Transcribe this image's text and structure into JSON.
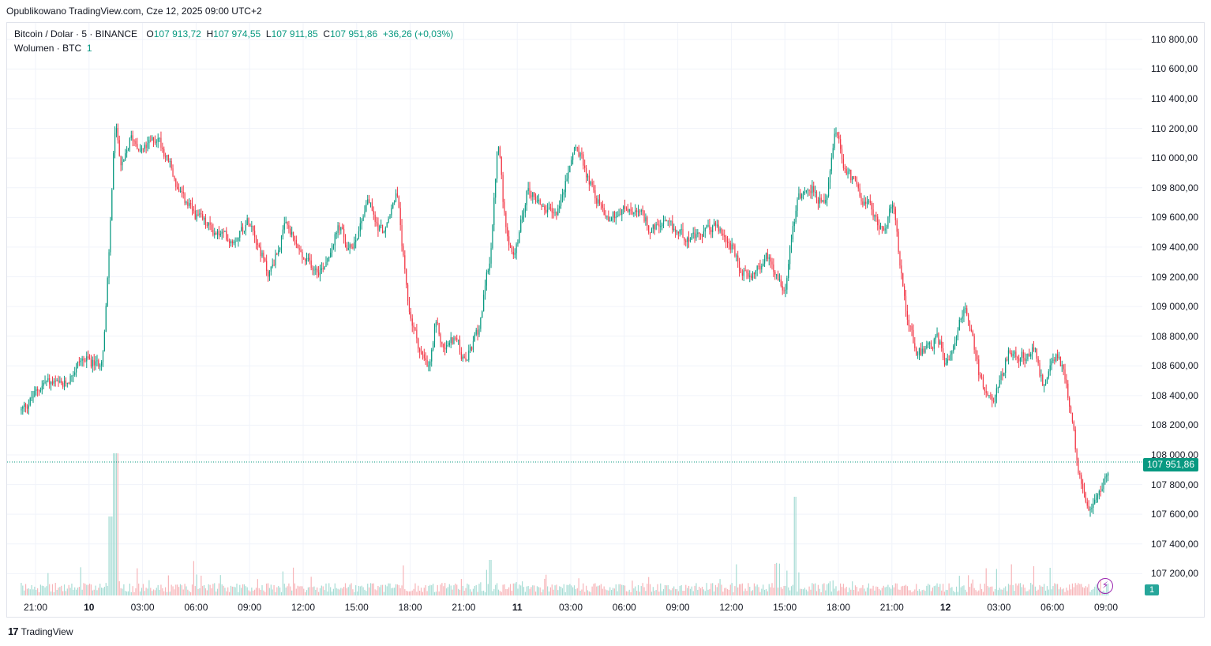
{
  "header": {
    "published": "Opublikowano TradingView.com, Cze 12, 2025 09:00 UTC+2"
  },
  "legend": {
    "symbol": "Bitcoin / Dolar · 5 · BINANCE",
    "o_label": "O",
    "o_value": "107 913,72",
    "h_label": "H",
    "h_value": "107 974,55",
    "l_label": "L",
    "l_value": "107 911,85",
    "c_label": "C",
    "c_value": "107 951,86",
    "change": "+36,26 (+0,03%)",
    "volume_label": "Wolumen · BTC",
    "volume_value": "1"
  },
  "price_badge": "107 951,86",
  "volume_badge": "1",
  "footer": {
    "brand": "TradingView",
    "logo": "17"
  },
  "colors": {
    "up": "#089981",
    "down": "#f23645",
    "grid": "#f0f3fa",
    "vol_up": "#a6dcd4",
    "vol_down": "#f7b4b8"
  },
  "chart_data": {
    "type": "candlestick",
    "title": "Bitcoin / Dolar · 5 · BINANCE",
    "ylim": [
      107000,
      110900
    ],
    "y_ticks": [
      "110 800,00",
      "110 600,00",
      "110 400,00",
      "110 200,00",
      "110 000,00",
      "109 800,00",
      "109 600,00",
      "109 400,00",
      "109 200,00",
      "109 000,00",
      "108 800,00",
      "108 600,00",
      "108 400,00",
      "108 200,00",
      "108 000,00",
      "107 800,00",
      "107 600,00",
      "107 400,00",
      "107 200,00"
    ],
    "y_tick_values": [
      110800,
      110600,
      110400,
      110200,
      110000,
      109800,
      109600,
      109400,
      109200,
      109000,
      108800,
      108600,
      108400,
      108200,
      108000,
      107800,
      107600,
      107400,
      107200
    ],
    "x_ticks": [
      {
        "label": "21:00",
        "bold": false
      },
      {
        "label": "10",
        "bold": true
      },
      {
        "label": "03:00",
        "bold": false
      },
      {
        "label": "06:00",
        "bold": false
      },
      {
        "label": "09:00",
        "bold": false
      },
      {
        "label": "12:00",
        "bold": false
      },
      {
        "label": "15:00",
        "bold": false
      },
      {
        "label": "18:00",
        "bold": false
      },
      {
        "label": "21:00",
        "bold": false
      },
      {
        "label": "11",
        "bold": true
      },
      {
        "label": "03:00",
        "bold": false
      },
      {
        "label": "06:00",
        "bold": false
      },
      {
        "label": "09:00",
        "bold": false
      },
      {
        "label": "12:00",
        "bold": false
      },
      {
        "label": "15:00",
        "bold": false
      },
      {
        "label": "18:00",
        "bold": false
      },
      {
        "label": "21:00",
        "bold": false
      },
      {
        "label": "12",
        "bold": true
      },
      {
        "label": "03:00",
        "bold": false
      },
      {
        "label": "06:00",
        "bold": false
      },
      {
        "label": "09:00",
        "bold": false
      }
    ],
    "x_tick_hours": [
      0,
      3,
      6,
      9,
      12,
      15,
      18,
      21,
      24,
      27,
      30,
      33,
      36,
      39,
      42,
      45,
      48,
      51,
      54,
      57,
      60
    ],
    "last_price": 107951.86,
    "hours_span": [
      -0.8,
      60.2
    ],
    "price_path": [
      [
        -0.8,
        108300
      ],
      [
        0.5,
        108500
      ],
      [
        1.5,
        108450
      ],
      [
        2.5,
        108650
      ],
      [
        3.5,
        108600
      ],
      [
        3.8,
        108750
      ],
      [
        4.0,
        109200
      ],
      [
        4.2,
        109700
      ],
      [
        4.4,
        110300
      ],
      [
        4.8,
        109900
      ],
      [
        5.3,
        110150
      ],
      [
        6.0,
        110050
      ],
      [
        6.8,
        110150
      ],
      [
        7.5,
        109950
      ],
      [
        8.0,
        109750
      ],
      [
        9.0,
        109600
      ],
      [
        10.0,
        109500
      ],
      [
        11.0,
        109450
      ],
      [
        12.0,
        109600
      ],
      [
        13.0,
        109200
      ],
      [
        14.0,
        109550
      ],
      [
        15.0,
        109300
      ],
      [
        16.0,
        109250
      ],
      [
        16.5,
        109400
      ],
      [
        17.0,
        109550
      ],
      [
        17.5,
        109350
      ],
      [
        18.0,
        109500
      ],
      [
        18.6,
        109750
      ],
      [
        19.0,
        109550
      ],
      [
        19.6,
        109500
      ],
      [
        20.2,
        109800
      ],
      [
        20.8,
        109000
      ],
      [
        21.5,
        108700
      ],
      [
        22.0,
        108550
      ],
      [
        22.4,
        108900
      ],
      [
        22.8,
        108700
      ],
      [
        23.5,
        108800
      ],
      [
        24.0,
        108600
      ],
      [
        24.8,
        108850
      ],
      [
        25.5,
        109400
      ],
      [
        25.9,
        110200
      ],
      [
        26.2,
        109600
      ],
      [
        26.8,
        109300
      ],
      [
        27.5,
        109800
      ],
      [
        28.2,
        109700
      ],
      [
        29.0,
        109600
      ],
      [
        29.5,
        109750
      ],
      [
        30.2,
        110100
      ],
      [
        30.8,
        109900
      ],
      [
        31.5,
        109700
      ],
      [
        32.0,
        109600
      ],
      [
        33.0,
        109650
      ],
      [
        34.0,
        109600
      ],
      [
        34.5,
        109500
      ],
      [
        35.0,
        109550
      ],
      [
        36.0,
        109500
      ],
      [
        37.0,
        109450
      ],
      [
        38.0,
        109550
      ],
      [
        39.0,
        109400
      ],
      [
        39.5,
        109200
      ],
      [
        40.5,
        109250
      ],
      [
        41.0,
        109350
      ],
      [
        42.0,
        109100
      ],
      [
        42.3,
        109500
      ],
      [
        42.7,
        109750
      ],
      [
        43.5,
        109800
      ],
      [
        44.2,
        109650
      ],
      [
        44.8,
        110200
      ],
      [
        45.2,
        109950
      ],
      [
        46.0,
        109800
      ],
      [
        47.0,
        109600
      ],
      [
        47.5,
        109500
      ],
      [
        48.0,
        109700
      ],
      [
        48.7,
        109000
      ],
      [
        49.3,
        108700
      ],
      [
        50.0,
        108700
      ],
      [
        50.5,
        108800
      ],
      [
        51.0,
        108600
      ],
      [
        51.6,
        108850
      ],
      [
        52.0,
        109000
      ],
      [
        52.4,
        108850
      ],
      [
        52.9,
        108500
      ],
      [
        53.5,
        108350
      ],
      [
        54.0,
        108500
      ],
      [
        54.5,
        108700
      ],
      [
        55.0,
        108650
      ],
      [
        56.0,
        108700
      ],
      [
        56.5,
        108400
      ],
      [
        57.0,
        108700
      ],
      [
        57.5,
        108600
      ],
      [
        58.0,
        108250
      ],
      [
        58.4,
        107900
      ],
      [
        58.8,
        107700
      ],
      [
        59.2,
        107600
      ],
      [
        59.7,
        107800
      ],
      [
        60.2,
        107950
      ]
    ]
  }
}
